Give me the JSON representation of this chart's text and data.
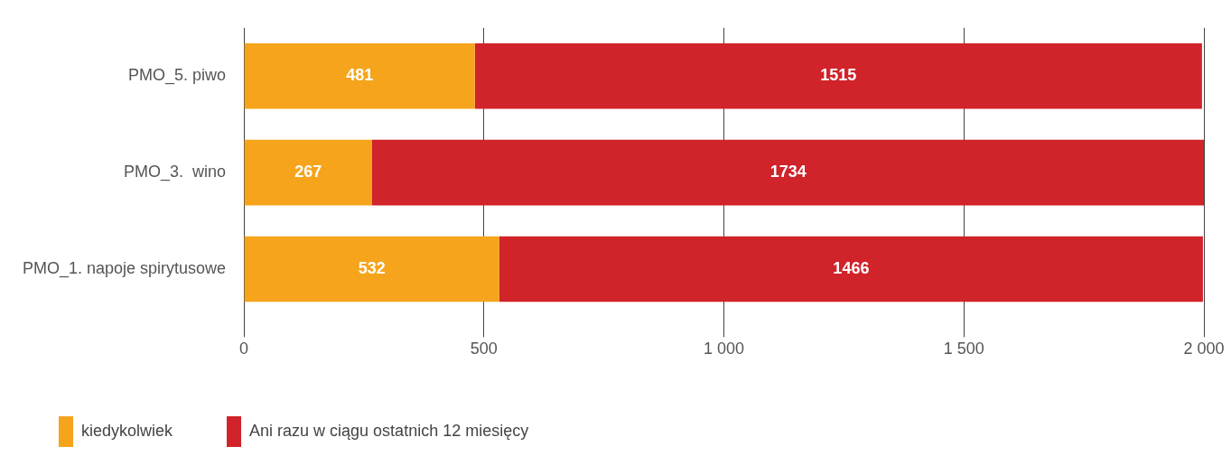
{
  "chart_data": {
    "type": "bar",
    "orientation": "horizontal",
    "stacked": true,
    "categories": [
      "PMO_5. piwo",
      "PMO_3.  wino",
      "PMO_1. napoje spirytusowe"
    ],
    "series": [
      {
        "name": "kiedykolwiek",
        "color": "#f5a41c",
        "values": [
          481,
          267,
          532
        ]
      },
      {
        "name": "Ani razu w ciągu ostatnich 12 miesięcy",
        "color": "#d0232a",
        "values": [
          1515,
          1734,
          1466
        ]
      }
    ],
    "xlim": [
      0,
      2000
    ],
    "xticks": [
      0,
      500,
      {
        "value": 1000,
        "label": "1 000"
      },
      {
        "value": 1500,
        "label": "1 500"
      },
      {
        "value": 2000,
        "label": "2 000"
      }
    ],
    "grid": "x",
    "legend": "bottom",
    "data_labels": true
  }
}
